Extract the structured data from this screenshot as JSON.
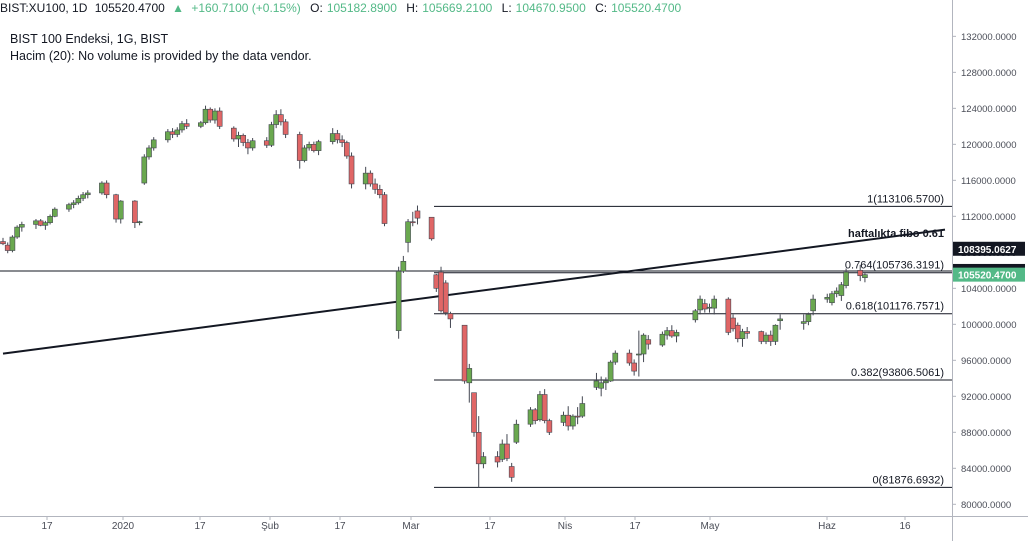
{
  "header": {
    "symbol": "BIST:XU100, 1D",
    "last": "105520.4700",
    "change": "+160.7100 (+0.15%)",
    "o_label": "O:",
    "o_val": "105182.8900",
    "h_label": "H:",
    "h_val": "105669.2100",
    "l_label": "L:",
    "l_val": "104670.9500",
    "c_label": "C:",
    "c_val": "105520.4700"
  },
  "legend": {
    "title": "BIST 100 Endeksi, 1G, BIST",
    "volume": "Hacim (20): No volume is provided by the data vendor."
  },
  "colors": {
    "up": "#6aa84f",
    "down": "#e06666",
    "wick": "#434651",
    "line": "#131722",
    "price_tag": "#53b987",
    "tag_dark": "#131722"
  },
  "chart_data": {
    "type": "candlestick",
    "y_axis_ticks": [
      132000,
      128000,
      124000,
      120000,
      116000,
      112000,
      108000,
      104000,
      100000,
      96000,
      92000,
      88000,
      84000,
      80000
    ],
    "y_tick_decimals": 4,
    "ylim": [
      78700,
      134150
    ],
    "x_axis_labels": [
      "17",
      "2020",
      "17",
      "Şub",
      "17",
      "Mar",
      "17",
      "Nis",
      "17",
      "May",
      "Haz",
      "16"
    ],
    "date_range": [
      "2019-12-09",
      "2020-06-26"
    ],
    "fibonacci": {
      "levels": [
        {
          "label": "1(113106.5700)",
          "value": 113106.57
        },
        {
          "label": "0.764(105736.3191)",
          "value": 105736.3191
        },
        {
          "label": "0.618(101176.7571)",
          "value": 101176.7571
        },
        {
          "label": "0.382(93806.5061)",
          "value": 93806.5061
        },
        {
          "label": "0(81876.6932)",
          "value": 81876.6932
        }
      ]
    },
    "horizontal_line": {
      "value": 105930.24,
      "label": "105930.2400"
    },
    "trendline": {
      "label": "haftalıkta fibo 0.61",
      "tag": "108395.0627",
      "tag_value": 108395.0627,
      "start": [
        "2019-12-09",
        96740
      ],
      "end": [
        "2020-06-26",
        110520
      ]
    },
    "last_price": {
      "value": 105520.47,
      "label": "105520.4700"
    },
    "candles": [
      {
        "d": "2019-12-09",
        "o": 109200,
        "h": 109600,
        "l": 108800,
        "c": 108950
      },
      {
        "d": "2019-12-10",
        "o": 108800,
        "h": 109100,
        "l": 107900,
        "c": 108200
      },
      {
        "d": "2019-12-11",
        "o": 108200,
        "h": 109900,
        "l": 108000,
        "c": 109700
      },
      {
        "d": "2019-12-12",
        "o": 109700,
        "h": 111000,
        "l": 109500,
        "c": 110800
      },
      {
        "d": "2019-12-13",
        "o": 110800,
        "h": 111400,
        "l": 110300,
        "c": 111100
      },
      {
        "d": "2019-12-16",
        "o": 111100,
        "h": 111700,
        "l": 110600,
        "c": 111500
      },
      {
        "d": "2019-12-17",
        "o": 111500,
        "h": 111700,
        "l": 110900,
        "c": 111000
      },
      {
        "d": "2019-12-18",
        "o": 111000,
        "h": 111500,
        "l": 110500,
        "c": 111300
      },
      {
        "d": "2019-12-19",
        "o": 111300,
        "h": 112200,
        "l": 111100,
        "c": 112000
      },
      {
        "d": "2019-12-20",
        "o": 112000,
        "h": 113000,
        "l": 111900,
        "c": 112800
      },
      {
        "d": "2019-12-23",
        "o": 112800,
        "h": 113500,
        "l": 112500,
        "c": 113300
      },
      {
        "d": "2019-12-24",
        "o": 113300,
        "h": 113800,
        "l": 112900,
        "c": 113500
      },
      {
        "d": "2019-12-25",
        "o": 113500,
        "h": 114300,
        "l": 113300,
        "c": 114000
      },
      {
        "d": "2019-12-26",
        "o": 114000,
        "h": 114700,
        "l": 113700,
        "c": 114400
      },
      {
        "d": "2019-12-27",
        "o": 114400,
        "h": 114900,
        "l": 114000,
        "c": 114600
      },
      {
        "d": "2019-12-30",
        "o": 114600,
        "h": 115900,
        "l": 114400,
        "c": 115700
      },
      {
        "d": "2019-12-31",
        "o": 115700,
        "h": 116000,
        "l": 114000,
        "c": 114400
      },
      {
        "d": "2020-01-02",
        "o": 114400,
        "h": 114500,
        "l": 111300,
        "c": 111700
      },
      {
        "d": "2020-01-03",
        "o": 111700,
        "h": 113800,
        "l": 111200,
        "c": 113700
      },
      {
        "d": "2020-01-06",
        "o": 113700,
        "h": 113800,
        "l": 110700,
        "c": 111300
      },
      {
        "d": "2020-01-07",
        "o": 111300,
        "h": 111500,
        "l": 111000,
        "c": 111400
      },
      {
        "d": "2020-01-08",
        "o": 115700,
        "h": 118900,
        "l": 115500,
        "c": 118600
      },
      {
        "d": "2020-01-09",
        "o": 118600,
        "h": 119900,
        "l": 118300,
        "c": 119600
      },
      {
        "d": "2020-01-10",
        "o": 119600,
        "h": 120800,
        "l": 119300,
        "c": 120500
      },
      {
        "d": "2020-01-13",
        "o": 120500,
        "h": 121700,
        "l": 120200,
        "c": 121400
      },
      {
        "d": "2020-01-14",
        "o": 121400,
        "h": 121800,
        "l": 120700,
        "c": 121100
      },
      {
        "d": "2020-01-15",
        "o": 121100,
        "h": 121900,
        "l": 120800,
        "c": 121600
      },
      {
        "d": "2020-01-16",
        "o": 121600,
        "h": 122600,
        "l": 121300,
        "c": 122300
      },
      {
        "d": "2020-01-17",
        "o": 122300,
        "h": 122800,
        "l": 121700,
        "c": 122000
      },
      {
        "d": "2020-01-20",
        "o": 122000,
        "h": 122600,
        "l": 121800,
        "c": 122400
      },
      {
        "d": "2020-01-21",
        "o": 122400,
        "h": 124300,
        "l": 122200,
        "c": 123900
      },
      {
        "d": "2020-01-22",
        "o": 123900,
        "h": 124100,
        "l": 122400,
        "c": 122700
      },
      {
        "d": "2020-01-23",
        "o": 122700,
        "h": 124000,
        "l": 122300,
        "c": 123700
      },
      {
        "d": "2020-01-24",
        "o": 123700,
        "h": 124100,
        "l": 121700,
        "c": 122000
      },
      {
        "d": "2020-01-27",
        "o": 121800,
        "h": 122000,
        "l": 120300,
        "c": 120600
      },
      {
        "d": "2020-01-28",
        "o": 120600,
        "h": 121400,
        "l": 119700,
        "c": 121000
      },
      {
        "d": "2020-01-29",
        "o": 121000,
        "h": 121200,
        "l": 119800,
        "c": 120200
      },
      {
        "d": "2020-01-30",
        "o": 120200,
        "h": 120600,
        "l": 118900,
        "c": 119600
      },
      {
        "d": "2020-01-31",
        "o": 119600,
        "h": 120700,
        "l": 119300,
        "c": 120400
      },
      {
        "d": "2020-02-03",
        "o": 120400,
        "h": 120800,
        "l": 119600,
        "c": 119900
      },
      {
        "d": "2020-02-04",
        "o": 119900,
        "h": 122500,
        "l": 119700,
        "c": 122200
      },
      {
        "d": "2020-02-05",
        "o": 122200,
        "h": 123800,
        "l": 121800,
        "c": 123300
      },
      {
        "d": "2020-02-06",
        "o": 123300,
        "h": 123900,
        "l": 122100,
        "c": 122500
      },
      {
        "d": "2020-02-07",
        "o": 122500,
        "h": 122800,
        "l": 120700,
        "c": 121100
      },
      {
        "d": "2020-02-10",
        "o": 121100,
        "h": 121400,
        "l": 117300,
        "c": 118200
      },
      {
        "d": "2020-02-11",
        "o": 118200,
        "h": 119900,
        "l": 118000,
        "c": 119600
      },
      {
        "d": "2020-02-12",
        "o": 119600,
        "h": 120300,
        "l": 119300,
        "c": 120000
      },
      {
        "d": "2020-02-13",
        "o": 120000,
        "h": 120300,
        "l": 119100,
        "c": 119300
      },
      {
        "d": "2020-02-14",
        "o": 119300,
        "h": 120500,
        "l": 118800,
        "c": 120300
      },
      {
        "d": "2020-02-17",
        "o": 120300,
        "h": 121800,
        "l": 120000,
        "c": 121200
      },
      {
        "d": "2020-02-18",
        "o": 121200,
        "h": 121600,
        "l": 120100,
        "c": 120500
      },
      {
        "d": "2020-02-19",
        "o": 120500,
        "h": 121000,
        "l": 119700,
        "c": 120200
      },
      {
        "d": "2020-02-20",
        "o": 120200,
        "h": 120400,
        "l": 118400,
        "c": 118700
      },
      {
        "d": "2020-02-21",
        "o": 118700,
        "h": 119100,
        "l": 115100,
        "c": 115600
      },
      {
        "d": "2020-02-24",
        "o": 115600,
        "h": 117500,
        "l": 115000,
        "c": 116800
      },
      {
        "d": "2020-02-25",
        "o": 116800,
        "h": 117100,
        "l": 115300,
        "c": 115600
      },
      {
        "d": "2020-02-26",
        "o": 115600,
        "h": 116200,
        "l": 114500,
        "c": 115000
      },
      {
        "d": "2020-02-27",
        "o": 115000,
        "h": 115500,
        "l": 114000,
        "c": 114400
      },
      {
        "d": "2020-02-28",
        "o": 114400,
        "h": 114700,
        "l": 110900,
        "c": 111200
      },
      {
        "d": "2020-03-02",
        "o": 99300,
        "h": 106400,
        "l": 98400,
        "c": 105900
      },
      {
        "d": "2020-03-03",
        "o": 105900,
        "h": 107600,
        "l": 105700,
        "c": 107000
      },
      {
        "d": "2020-03-04",
        "o": 109100,
        "h": 111700,
        "l": 108000,
        "c": 111400
      },
      {
        "d": "2020-03-05",
        "o": 111400,
        "h": 112500,
        "l": 110900,
        "c": 111300
      },
      {
        "d": "2020-03-06",
        "o": 112600,
        "h": 113200,
        "l": 111100,
        "c": 111800
      },
      {
        "d": "2020-03-09",
        "o": 111900,
        "h": 111900,
        "l": 109300,
        "c": 109500
      },
      {
        "d": "2020-03-10",
        "o": 105500,
        "h": 105600,
        "l": 103600,
        "c": 104000
      },
      {
        "d": "2020-03-11",
        "o": 105800,
        "h": 106400,
        "l": 101300,
        "c": 101500
      },
      {
        "d": "2020-03-12",
        "o": 104600,
        "h": 104900,
        "l": 101000,
        "c": 101300
      },
      {
        "d": "2020-03-13",
        "o": 101200,
        "h": 101400,
        "l": 99600,
        "c": 100600
      },
      {
        "d": "2020-03-16",
        "o": 99900,
        "h": 99900,
        "l": 93400,
        "c": 93700
      },
      {
        "d": "2020-03-17",
        "o": 93500,
        "h": 95600,
        "l": 91300,
        "c": 95100
      },
      {
        "d": "2020-03-18",
        "o": 92400,
        "h": 92400,
        "l": 87500,
        "c": 88000
      },
      {
        "d": "2020-03-19",
        "o": 88000,
        "h": 89800,
        "l": 81900,
        "c": 84500
      },
      {
        "d": "2020-03-20",
        "o": 84500,
        "h": 85800,
        "l": 84000,
        "c": 85300
      },
      {
        "d": "2020-03-23",
        "o": 85300,
        "h": 85900,
        "l": 84100,
        "c": 84700
      },
      {
        "d": "2020-03-24",
        "o": 85000,
        "h": 87200,
        "l": 84700,
        "c": 86700
      },
      {
        "d": "2020-03-25",
        "o": 86700,
        "h": 87800,
        "l": 84800,
        "c": 85100
      },
      {
        "d": "2020-03-26",
        "o": 84200,
        "h": 84600,
        "l": 82500,
        "c": 83000
      },
      {
        "d": "2020-03-27",
        "o": 86900,
        "h": 89400,
        "l": 86700,
        "c": 88900
      },
      {
        "d": "2020-03-30",
        "o": 88900,
        "h": 90800,
        "l": 88600,
        "c": 90500
      },
      {
        "d": "2020-03-31",
        "o": 90500,
        "h": 90700,
        "l": 88900,
        "c": 89300
      },
      {
        "d": "2020-04-01",
        "o": 89400,
        "h": 92600,
        "l": 89200,
        "c": 92200
      },
      {
        "d": "2020-04-02",
        "o": 92200,
        "h": 92800,
        "l": 89000,
        "c": 89300
      },
      {
        "d": "2020-04-03",
        "o": 89300,
        "h": 89500,
        "l": 87700,
        "c": 88000
      },
      {
        "d": "2020-04-06",
        "o": 89100,
        "h": 90300,
        "l": 88700,
        "c": 89900
      },
      {
        "d": "2020-04-07",
        "o": 89900,
        "h": 90900,
        "l": 88200,
        "c": 88700
      },
      {
        "d": "2020-04-08",
        "o": 88700,
        "h": 90000,
        "l": 88300,
        "c": 89800
      },
      {
        "d": "2020-04-09",
        "o": 89800,
        "h": 90800,
        "l": 88900,
        "c": 89700
      },
      {
        "d": "2020-04-10",
        "o": 89800,
        "h": 92000,
        "l": 89600,
        "c": 91200
      },
      {
        "d": "2020-04-13",
        "o": 93000,
        "h": 94600,
        "l": 92700,
        "c": 93700
      },
      {
        "d": "2020-04-14",
        "o": 92900,
        "h": 94200,
        "l": 92000,
        "c": 93500
      },
      {
        "d": "2020-04-15",
        "o": 93500,
        "h": 94100,
        "l": 92700,
        "c": 93700
      },
      {
        "d": "2020-04-16",
        "o": 93700,
        "h": 96000,
        "l": 93600,
        "c": 95800
      },
      {
        "d": "2020-04-17",
        "o": 95800,
        "h": 97100,
        "l": 95500,
        "c": 96800
      },
      {
        "d": "2020-04-20",
        "o": 96800,
        "h": 97200,
        "l": 95400,
        "c": 95700
      },
      {
        "d": "2020-04-21",
        "o": 95700,
        "h": 96100,
        "l": 94300,
        "c": 94800
      },
      {
        "d": "2020-04-22",
        "o": 96700,
        "h": 99300,
        "l": 94200,
        "c": 96700
      },
      {
        "d": "2020-04-23",
        "o": 96700,
        "h": 99000,
        "l": 95800,
        "c": 98800
      },
      {
        "d": "2020-04-24",
        "o": 98300,
        "h": 98800,
        "l": 97200,
        "c": 97800
      },
      {
        "d": "2020-04-27",
        "o": 97700,
        "h": 99200,
        "l": 97500,
        "c": 98900
      },
      {
        "d": "2020-04-28",
        "o": 98800,
        "h": 99700,
        "l": 98300,
        "c": 99300
      },
      {
        "d": "2020-04-29",
        "o": 99300,
        "h": 99900,
        "l": 98500,
        "c": 98700
      },
      {
        "d": "2020-04-30",
        "o": 98700,
        "h": 99400,
        "l": 98000,
        "c": 99100
      },
      {
        "d": "2020-05-04",
        "o": 100500,
        "h": 101700,
        "l": 100200,
        "c": 101500
      },
      {
        "d": "2020-05-05",
        "o": 101600,
        "h": 103200,
        "l": 101100,
        "c": 102800
      },
      {
        "d": "2020-05-06",
        "o": 102300,
        "h": 102800,
        "l": 101300,
        "c": 101700
      },
      {
        "d": "2020-05-07",
        "o": 101800,
        "h": 102300,
        "l": 101300,
        "c": 101900
      },
      {
        "d": "2020-05-08",
        "o": 101800,
        "h": 103200,
        "l": 101100,
        "c": 102800
      },
      {
        "d": "2020-05-11",
        "o": 102800,
        "h": 103000,
        "l": 98800,
        "c": 99100
      },
      {
        "d": "2020-05-12",
        "o": 100700,
        "h": 101100,
        "l": 99200,
        "c": 99500
      },
      {
        "d": "2020-05-13",
        "o": 99900,
        "h": 100200,
        "l": 98000,
        "c": 98400
      },
      {
        "d": "2020-05-14",
        "o": 98400,
        "h": 99500,
        "l": 97500,
        "c": 99200
      },
      {
        "d": "2020-05-15",
        "o": 99200,
        "h": 99700,
        "l": 98400,
        "c": 99000
      },
      {
        "d": "2020-05-18",
        "o": 99200,
        "h": 99300,
        "l": 97800,
        "c": 98100
      },
      {
        "d": "2020-05-19",
        "o": 98100,
        "h": 99100,
        "l": 97800,
        "c": 98800
      },
      {
        "d": "2020-05-20",
        "o": 98800,
        "h": 99300,
        "l": 97600,
        "c": 98100
      },
      {
        "d": "2020-05-21",
        "o": 98100,
        "h": 100000,
        "l": 97700,
        "c": 99900
      },
      {
        "d": "2020-05-22",
        "o": 100400,
        "h": 101100,
        "l": 99400,
        "c": 100600
      },
      {
        "d": "2020-05-27",
        "o": 100100,
        "h": 101100,
        "l": 99400,
        "c": 100300
      },
      {
        "d": "2020-05-28",
        "o": 100300,
        "h": 101300,
        "l": 99900,
        "c": 101100
      },
      {
        "d": "2020-05-29",
        "o": 101500,
        "h": 103300,
        "l": 101000,
        "c": 102800
      },
      {
        "d": "2020-06-01",
        "o": 102800,
        "h": 103400,
        "l": 102400,
        "c": 103000
      },
      {
        "d": "2020-06-02",
        "o": 102400,
        "h": 103700,
        "l": 102100,
        "c": 103400
      },
      {
        "d": "2020-06-03",
        "o": 103400,
        "h": 104100,
        "l": 103000,
        "c": 103700
      },
      {
        "d": "2020-06-04",
        "o": 103200,
        "h": 104700,
        "l": 102600,
        "c": 104400
      },
      {
        "d": "2020-06-05",
        "o": 104300,
        "h": 106200,
        "l": 104000,
        "c": 105800
      },
      {
        "d": "2020-06-08",
        "o": 106000,
        "h": 106600,
        "l": 104800,
        "c": 105400
      },
      {
        "d": "2020-06-09",
        "o": 105183,
        "h": 105669,
        "l": 104671,
        "c": 105520
      }
    ]
  }
}
